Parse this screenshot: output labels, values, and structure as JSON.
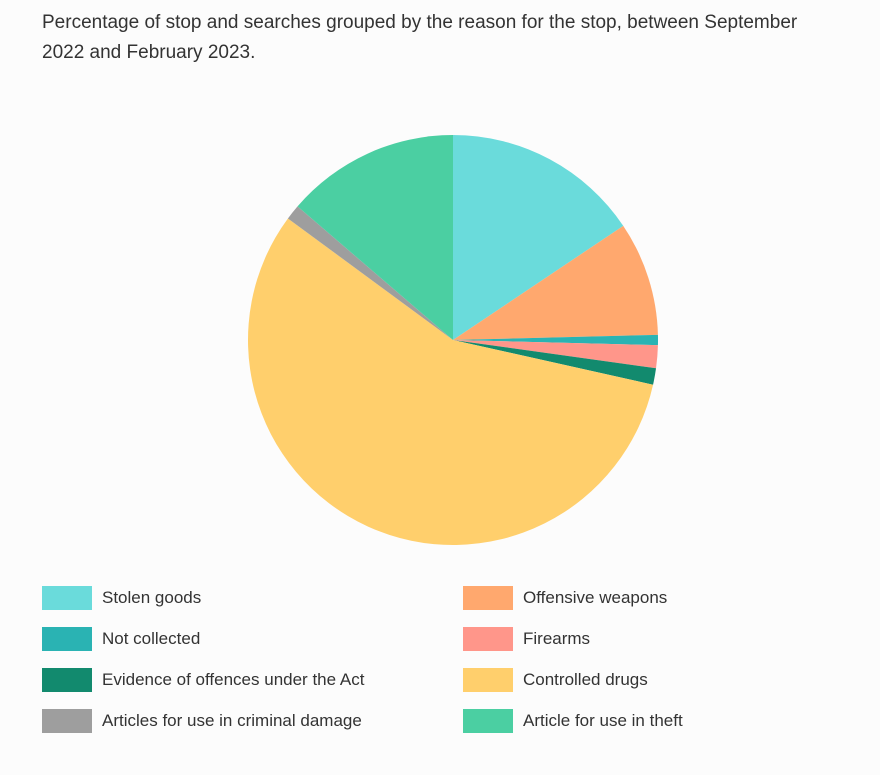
{
  "chart_data": {
    "type": "pie",
    "title": "Percentage of stop and searches grouped by the reason for the stop, between September 2022 and February 2023.",
    "legend_position": "bottom",
    "slices": [
      {
        "label": "Stolen goods",
        "value": 15.6,
        "color": "#6adbdb"
      },
      {
        "label": "Offensive weapons",
        "value": 9.0,
        "color": "#ffa86e"
      },
      {
        "label": "Not collected",
        "value": 0.8,
        "color": "#2ab3b3"
      },
      {
        "label": "Firearms",
        "value": 1.8,
        "color": "#ff968a"
      },
      {
        "label": "Evidence of offences under the Act",
        "value": 1.3,
        "color": "#128a6e"
      },
      {
        "label": "Controlled drugs",
        "value": 56.6,
        "color": "#ffcf6c"
      },
      {
        "label": "Articles for use in criminal damage",
        "value": 1.2,
        "color": "#9e9e9e"
      },
      {
        "label": "Article for use in theft",
        "value": 13.7,
        "color": "#4bcfa2"
      }
    ]
  },
  "legend": {
    "left_column": [
      {
        "label": "Stolen goods",
        "color": "#6adbdb"
      },
      {
        "label": "Not collected",
        "color": "#2ab3b3"
      },
      {
        "label": "Evidence of offences under the Act",
        "color": "#128a6e"
      },
      {
        "label": "Articles for use in criminal damage",
        "color": "#9e9e9e"
      }
    ],
    "right_column": [
      {
        "label": "Offensive weapons",
        "color": "#ffa86e"
      },
      {
        "label": "Firearms",
        "color": "#ff968a"
      },
      {
        "label": "Controlled drugs",
        "color": "#ffcf6c"
      },
      {
        "label": "Article for use in theft",
        "color": "#4bcfa2"
      }
    ]
  }
}
